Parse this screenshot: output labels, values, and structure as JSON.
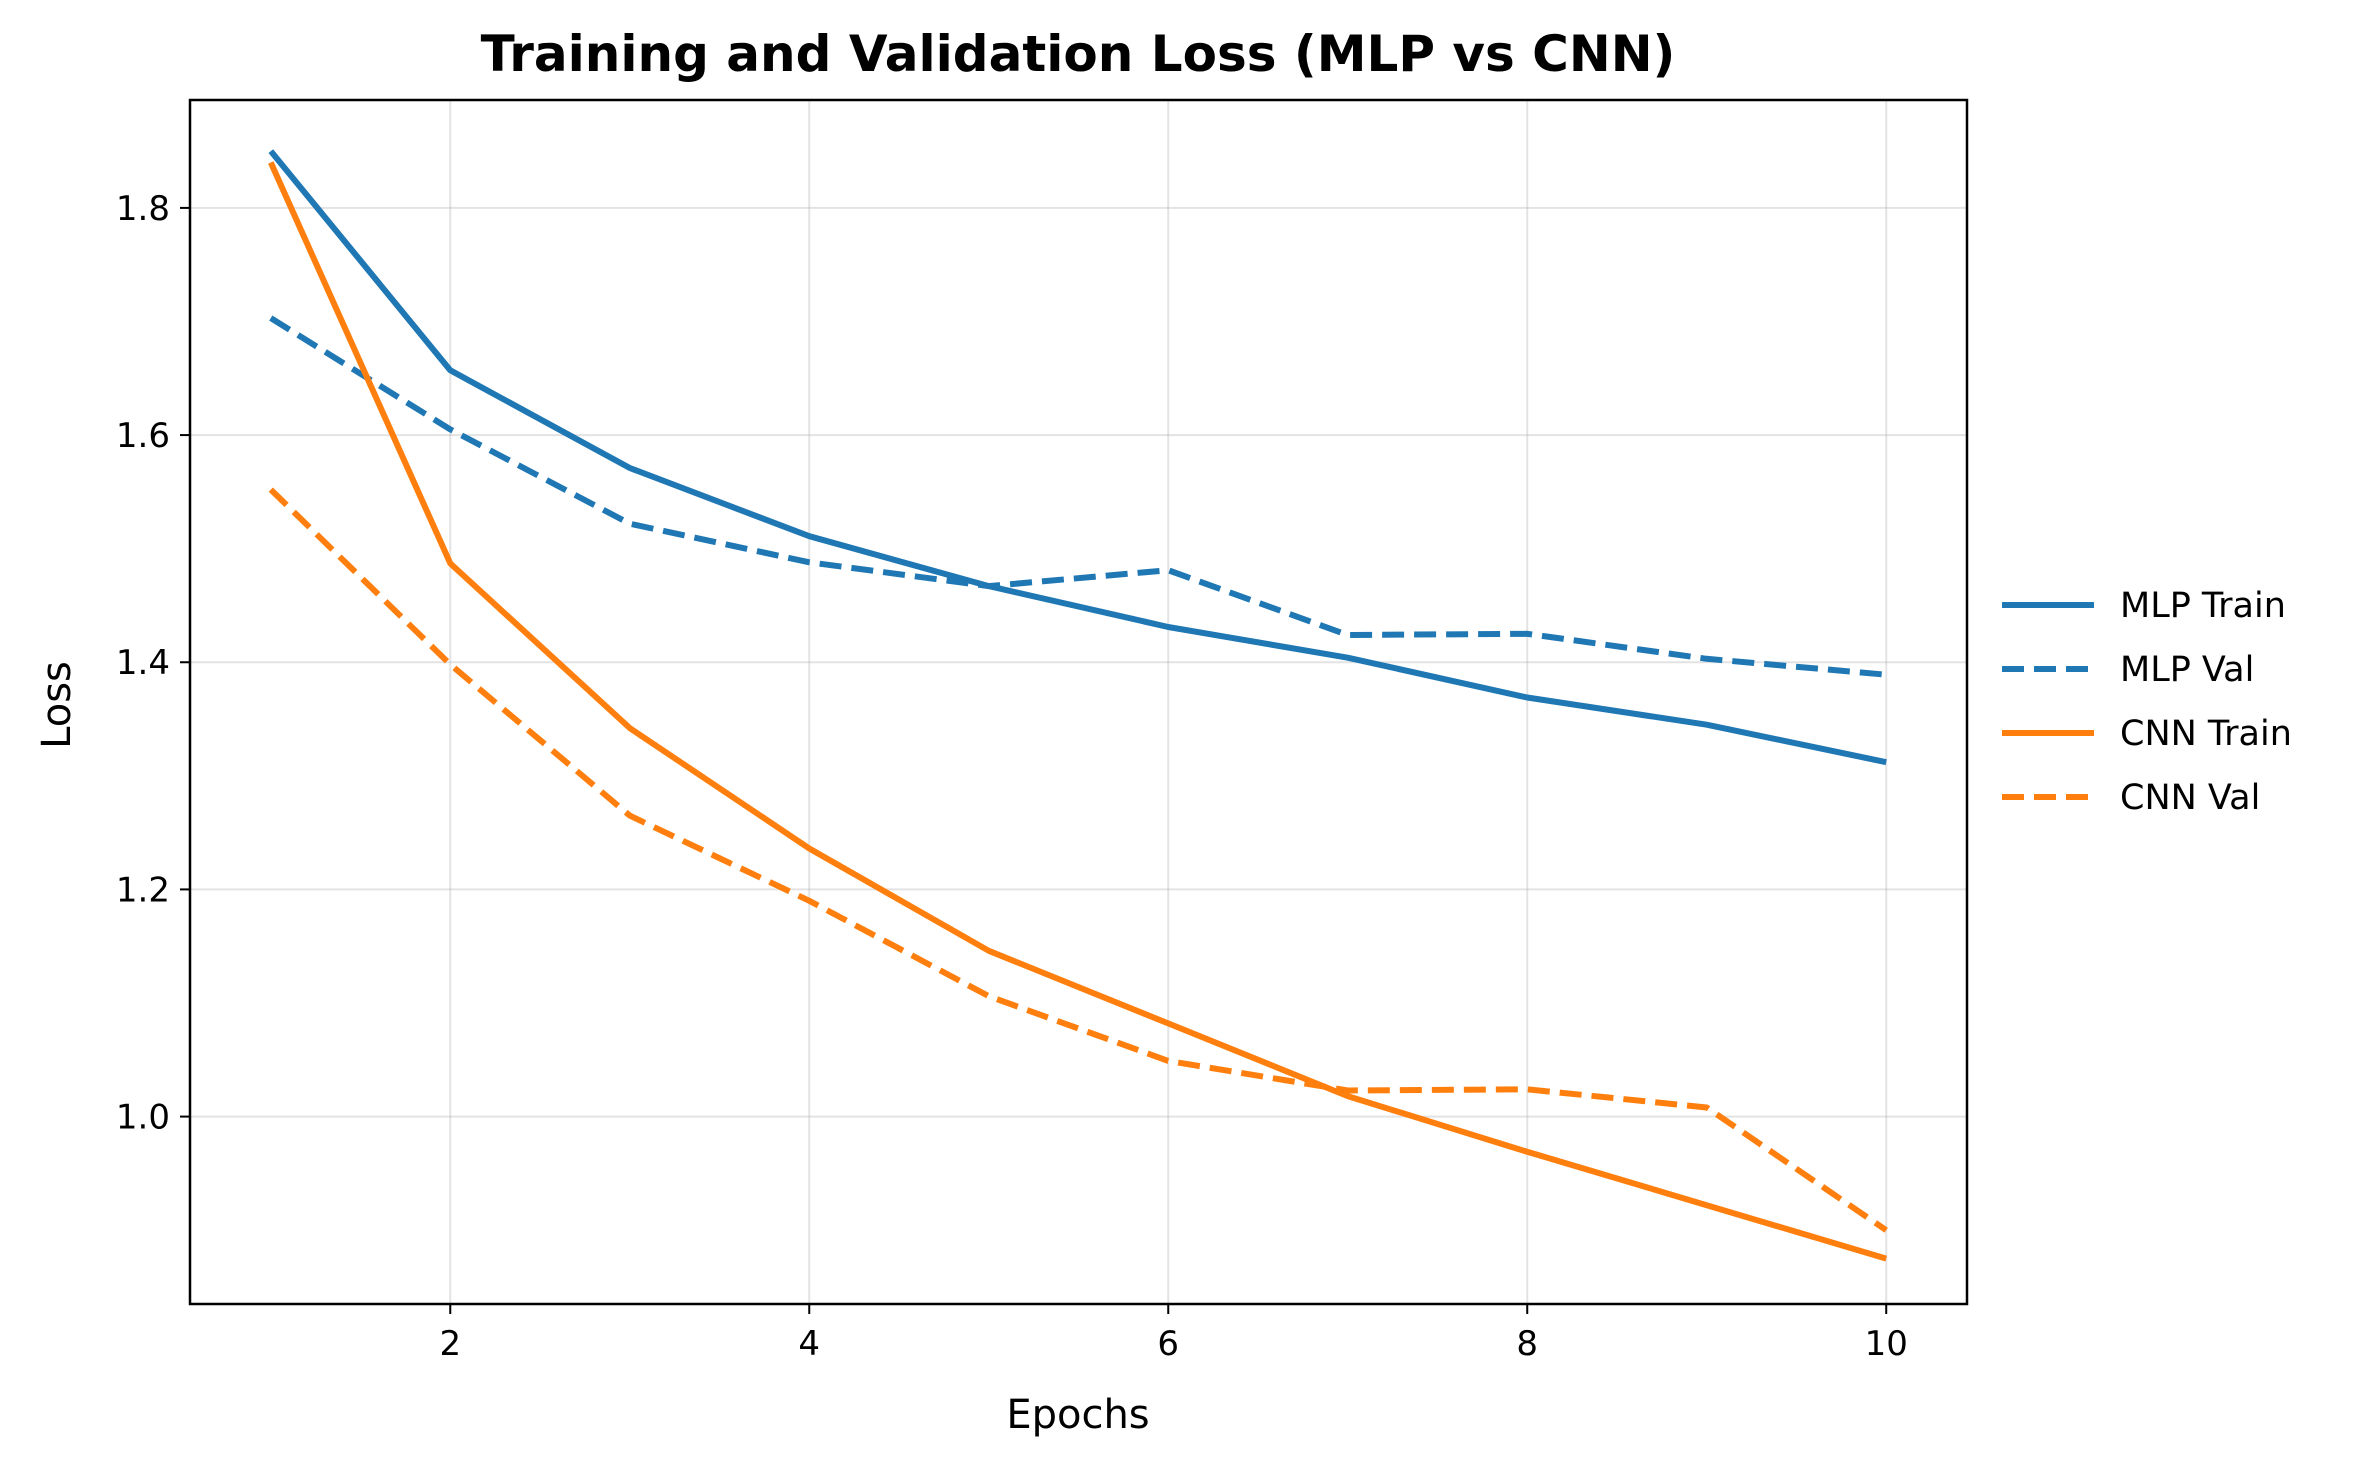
{
  "chart_data": {
    "type": "line",
    "title": "Training and Validation Loss (MLP vs CNN)",
    "xlabel": "Epochs",
    "ylabel": "Loss",
    "x": [
      1,
      2,
      3,
      4,
      5,
      6,
      7,
      8,
      9,
      10
    ],
    "xlim": [
      0.55,
      10.45
    ],
    "ylim": [
      0.835,
      1.895
    ],
    "xticks": [
      2,
      4,
      6,
      8,
      10
    ],
    "yticks": [
      1.0,
      1.2,
      1.4,
      1.6,
      1.8
    ],
    "xtick_labels": [
      "2",
      "4",
      "6",
      "8",
      "10"
    ],
    "ytick_labels": [
      "1.0",
      "1.2",
      "1.4",
      "1.6",
      "1.8"
    ],
    "grid": true,
    "legend_position": "outside-right",
    "series": [
      {
        "name": "MLP Train",
        "color": "#1f77b4",
        "style": "solid",
        "values": [
          1.85,
          1.657,
          1.571,
          1.511,
          1.467,
          1.431,
          1.404,
          1.369,
          1.345,
          1.312
        ]
      },
      {
        "name": "MLP Val",
        "color": "#1f77b4",
        "style": "dashed",
        "values": [
          1.703,
          1.605,
          1.522,
          1.488,
          1.467,
          1.481,
          1.424,
          1.425,
          1.403,
          1.389
        ]
      },
      {
        "name": "CNN Train",
        "color": "#ff7f0e",
        "style": "solid",
        "values": [
          1.84,
          1.487,
          1.342,
          1.236,
          1.146,
          1.082,
          1.018,
          0.969,
          0.922,
          0.875
        ]
      },
      {
        "name": "CNN Val",
        "color": "#ff7f0e",
        "style": "dashed",
        "values": [
          1.552,
          1.398,
          1.265,
          1.19,
          1.106,
          1.049,
          1.023,
          1.024,
          1.008,
          0.9
        ]
      }
    ]
  }
}
